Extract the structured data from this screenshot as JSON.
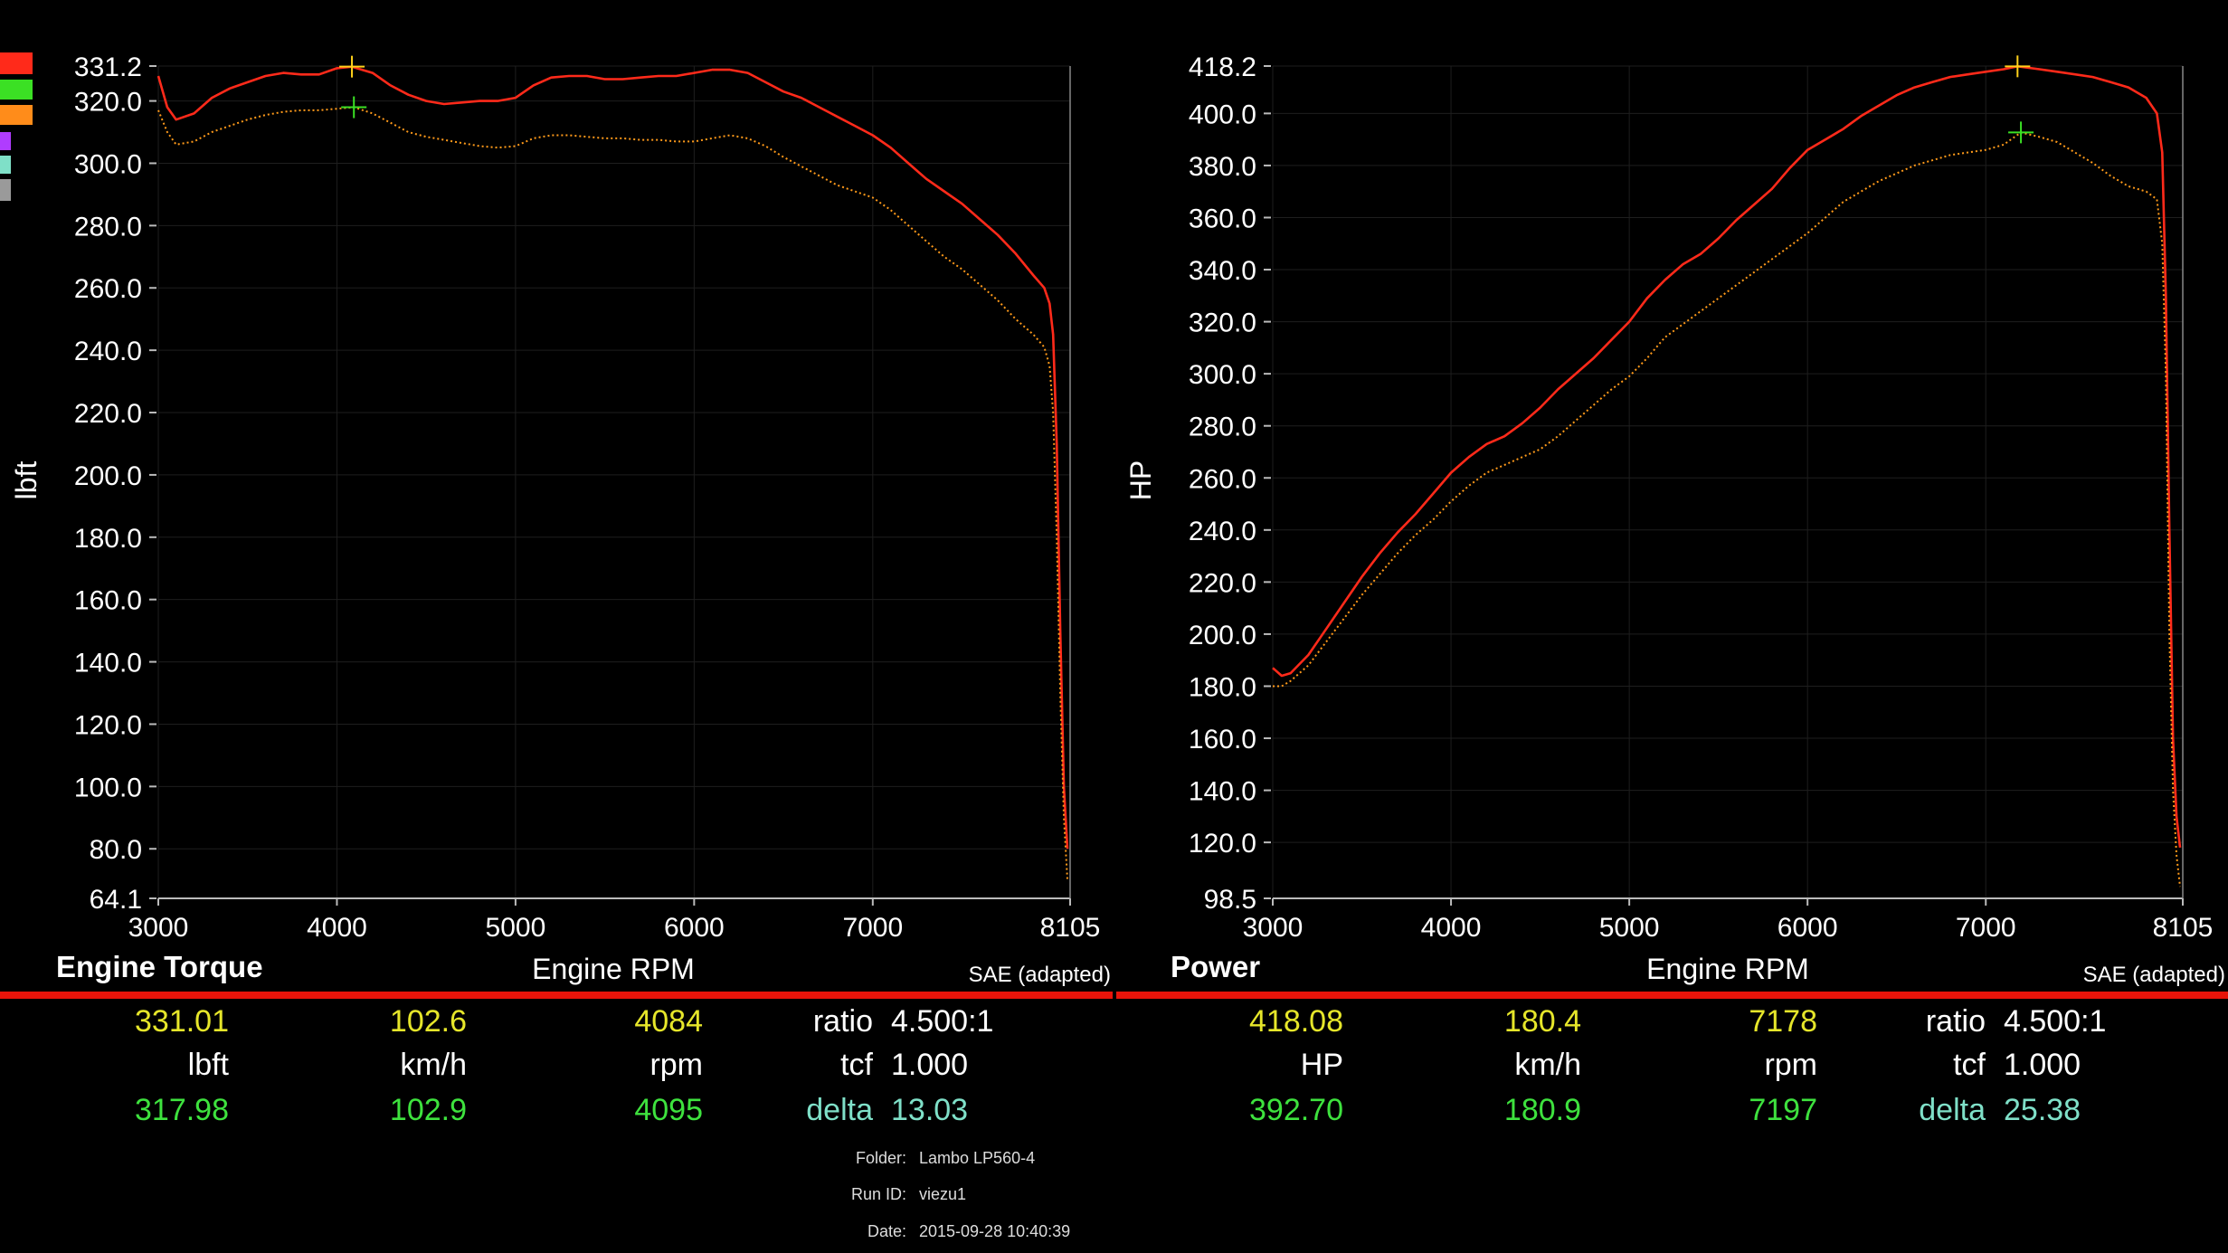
{
  "legend_colors": [
    "#ff2a1a",
    "#3be024",
    "#ff8c1a",
    "#b03cff",
    "#7fe0c8",
    "#9a9a9a"
  ],
  "chart_data": [
    {
      "type": "line",
      "title": "Engine Torque",
      "xlabel": "Engine RPM",
      "ylabel": "lbft",
      "note": "SAE (adapted)",
      "xlim": [
        3000,
        8105
      ],
      "ylim": [
        64.1,
        331.2
      ],
      "xticks": [
        "3000",
        "4000",
        "5000",
        "6000",
        "7000",
        "8105"
      ],
      "yticks": [
        "331.2",
        "320.0",
        "300.0",
        "280.0",
        "260.0",
        "240.0",
        "220.0",
        "200.0",
        "180.0",
        "160.0",
        "140.0",
        "120.0",
        "100.0",
        "80.0",
        "64.1"
      ],
      "grid": true,
      "series": [
        {
          "color": "#ff2a1a",
          "style": "solid",
          "x": [
            3000,
            3050,
            3100,
            3200,
            3300,
            3400,
            3500,
            3600,
            3700,
            3800,
            3900,
            4000,
            4084,
            4200,
            4300,
            4400,
            4500,
            4600,
            4700,
            4800,
            4900,
            5000,
            5100,
            5200,
            5300,
            5400,
            5500,
            5600,
            5700,
            5800,
            5900,
            6000,
            6100,
            6200,
            6300,
            6400,
            6500,
            6600,
            6700,
            6800,
            6900,
            7000,
            7100,
            7200,
            7300,
            7400,
            7500,
            7600,
            7700,
            7800,
            7900,
            7960,
            7990,
            8010,
            8030,
            8050,
            8070,
            8090
          ],
          "y": [
            328,
            318,
            314,
            316,
            321,
            324,
            326,
            328,
            329,
            328.5,
            328.5,
            330.5,
            331.01,
            329,
            325,
            322,
            320,
            319,
            319.5,
            320,
            320,
            321,
            325,
            327.5,
            328,
            328,
            327,
            327,
            327.5,
            328,
            328,
            329,
            330,
            330,
            329,
            326,
            323,
            321,
            318,
            315,
            312,
            309,
            305,
            300,
            295,
            291,
            287,
            282,
            277,
            271,
            264,
            260,
            255,
            245,
            210,
            150,
            100,
            80
          ]
        },
        {
          "color": "#ff9a1a",
          "style": "dotted",
          "x": [
            3000,
            3050,
            3100,
            3200,
            3300,
            3400,
            3500,
            3600,
            3700,
            3800,
            3900,
            4000,
            4095,
            4200,
            4300,
            4400,
            4500,
            4600,
            4700,
            4800,
            4900,
            5000,
            5100,
            5200,
            5300,
            5400,
            5500,
            5600,
            5700,
            5800,
            5900,
            6000,
            6100,
            6200,
            6300,
            6400,
            6500,
            6600,
            6700,
            6800,
            6900,
            7000,
            7100,
            7200,
            7300,
            7400,
            7500,
            7600,
            7700,
            7800,
            7900,
            7960,
            7990,
            8010,
            8030,
            8050,
            8070,
            8090
          ],
          "y": [
            317,
            310,
            306,
            307,
            310,
            312,
            314,
            315.5,
            316.5,
            317,
            317,
            317.5,
            317.98,
            316,
            313,
            310,
            308.5,
            307.5,
            306.5,
            305.5,
            305,
            305.5,
            308,
            309,
            309,
            308.5,
            308,
            308,
            307.5,
            307.5,
            307,
            307,
            308,
            309,
            308,
            305.5,
            302,
            299,
            296,
            293,
            291,
            289,
            285,
            280,
            275,
            270,
            266,
            261,
            256,
            250,
            245,
            241,
            235,
            220,
            180,
            130,
            90,
            70
          ]
        }
      ],
      "markers": [
        {
          "x": 4084,
          "y": 331.01,
          "color": "#ffd11a"
        },
        {
          "x": 4095,
          "y": 317.98,
          "color": "#3be024"
        }
      ],
      "readout": {
        "top": [
          "331.01",
          "102.6",
          "4084"
        ],
        "units": [
          "lbft",
          "km/h",
          "rpm"
        ],
        "bottom": [
          "317.98",
          "102.9",
          "4095"
        ],
        "ratio_label": "ratio",
        "ratio_value": "4.500:1",
        "tcf_label": "tcf",
        "tcf_value": "1.000",
        "delta_label": "delta",
        "delta_value": "13.03"
      }
    },
    {
      "type": "line",
      "title": "Power",
      "xlabel": "Engine RPM",
      "ylabel": "HP",
      "note": "SAE (adapted)",
      "xlim": [
        3000,
        8105
      ],
      "ylim": [
        98.5,
        418.2
      ],
      "xticks": [
        "3000",
        "4000",
        "5000",
        "6000",
        "7000",
        "8105"
      ],
      "yticks": [
        "418.2",
        "400.0",
        "380.0",
        "360.0",
        "340.0",
        "320.0",
        "300.0",
        "280.0",
        "260.0",
        "240.0",
        "220.0",
        "200.0",
        "180.0",
        "160.0",
        "140.0",
        "120.0",
        "98.5"
      ],
      "grid": true,
      "series": [
        {
          "color": "#ff2a1a",
          "style": "solid",
          "x": [
            3000,
            3050,
            3100,
            3200,
            3300,
            3400,
            3500,
            3600,
            3700,
            3800,
            3900,
            4000,
            4100,
            4200,
            4300,
            4400,
            4500,
            4600,
            4700,
            4800,
            4900,
            5000,
            5100,
            5200,
            5300,
            5400,
            5500,
            5600,
            5700,
            5800,
            5900,
            6000,
            6100,
            6200,
            6300,
            6400,
            6500,
            6600,
            6700,
            6800,
            6900,
            7000,
            7100,
            7178,
            7300,
            7400,
            7500,
            7600,
            7700,
            7800,
            7900,
            7960,
            7990,
            8010,
            8030,
            8050,
            8070,
            8090
          ],
          "y": [
            187,
            184,
            185,
            192,
            202,
            212,
            222,
            231,
            239,
            246,
            254,
            262,
            268,
            273,
            276,
            281,
            287,
            294,
            300,
            306,
            313,
            320,
            329,
            336,
            342,
            346,
            352,
            359,
            365,
            371,
            379,
            386,
            390,
            394,
            399,
            403,
            407,
            410,
            412,
            414,
            415,
            416,
            417,
            418.08,
            417,
            416,
            415,
            414,
            412,
            410,
            406,
            400,
            385,
            330,
            240,
            160,
            130,
            118
          ]
        },
        {
          "color": "#ff9a1a",
          "style": "dotted",
          "x": [
            3000,
            3050,
            3100,
            3200,
            3300,
            3400,
            3500,
            3600,
            3700,
            3800,
            3900,
            4000,
            4100,
            4200,
            4300,
            4400,
            4500,
            4600,
            4700,
            4800,
            4900,
            5000,
            5100,
            5200,
            5300,
            5400,
            5500,
            5600,
            5700,
            5800,
            5900,
            6000,
            6100,
            6200,
            6300,
            6400,
            6500,
            6600,
            6700,
            6800,
            6900,
            7000,
            7100,
            7197,
            7300,
            7400,
            7500,
            7600,
            7700,
            7800,
            7900,
            7960,
            7990,
            8010,
            8030,
            8050,
            8070,
            8090
          ],
          "y": [
            180,
            180,
            182,
            188,
            197,
            206,
            215,
            223,
            231,
            238,
            244,
            251,
            257,
            262,
            265,
            268,
            271,
            276,
            282,
            288,
            294,
            299,
            306,
            314,
            319,
            324,
            329,
            334,
            339,
            344,
            349,
            354,
            360,
            366,
            370,
            374,
            377,
            380,
            382,
            384,
            385,
            386,
            388,
            392.7,
            391,
            389,
            385,
            381,
            376,
            372,
            370,
            367,
            350,
            300,
            200,
            140,
            115,
            103
          ]
        }
      ],
      "markers": [
        {
          "x": 7178,
          "y": 418.08,
          "color": "#ffd11a"
        },
        {
          "x": 7197,
          "y": 392.7,
          "color": "#3be024"
        }
      ],
      "readout": {
        "top": [
          "418.08",
          "180.4",
          "7178"
        ],
        "units": [
          "HP",
          "km/h",
          "rpm"
        ],
        "bottom": [
          "392.70",
          "180.9",
          "7197"
        ],
        "ratio_label": "ratio",
        "ratio_value": "4.500:1",
        "tcf_label": "tcf",
        "tcf_value": "1.000",
        "delta_label": "delta",
        "delta_value": "25.38"
      }
    }
  ],
  "meta": {
    "folder_label": "Folder:",
    "folder_value": "Lambo LP560-4",
    "runid_label": "Run ID:",
    "runid_value": "viezu1",
    "date_label": "Date:",
    "date_value": "2015-09-28 10:40:39"
  }
}
